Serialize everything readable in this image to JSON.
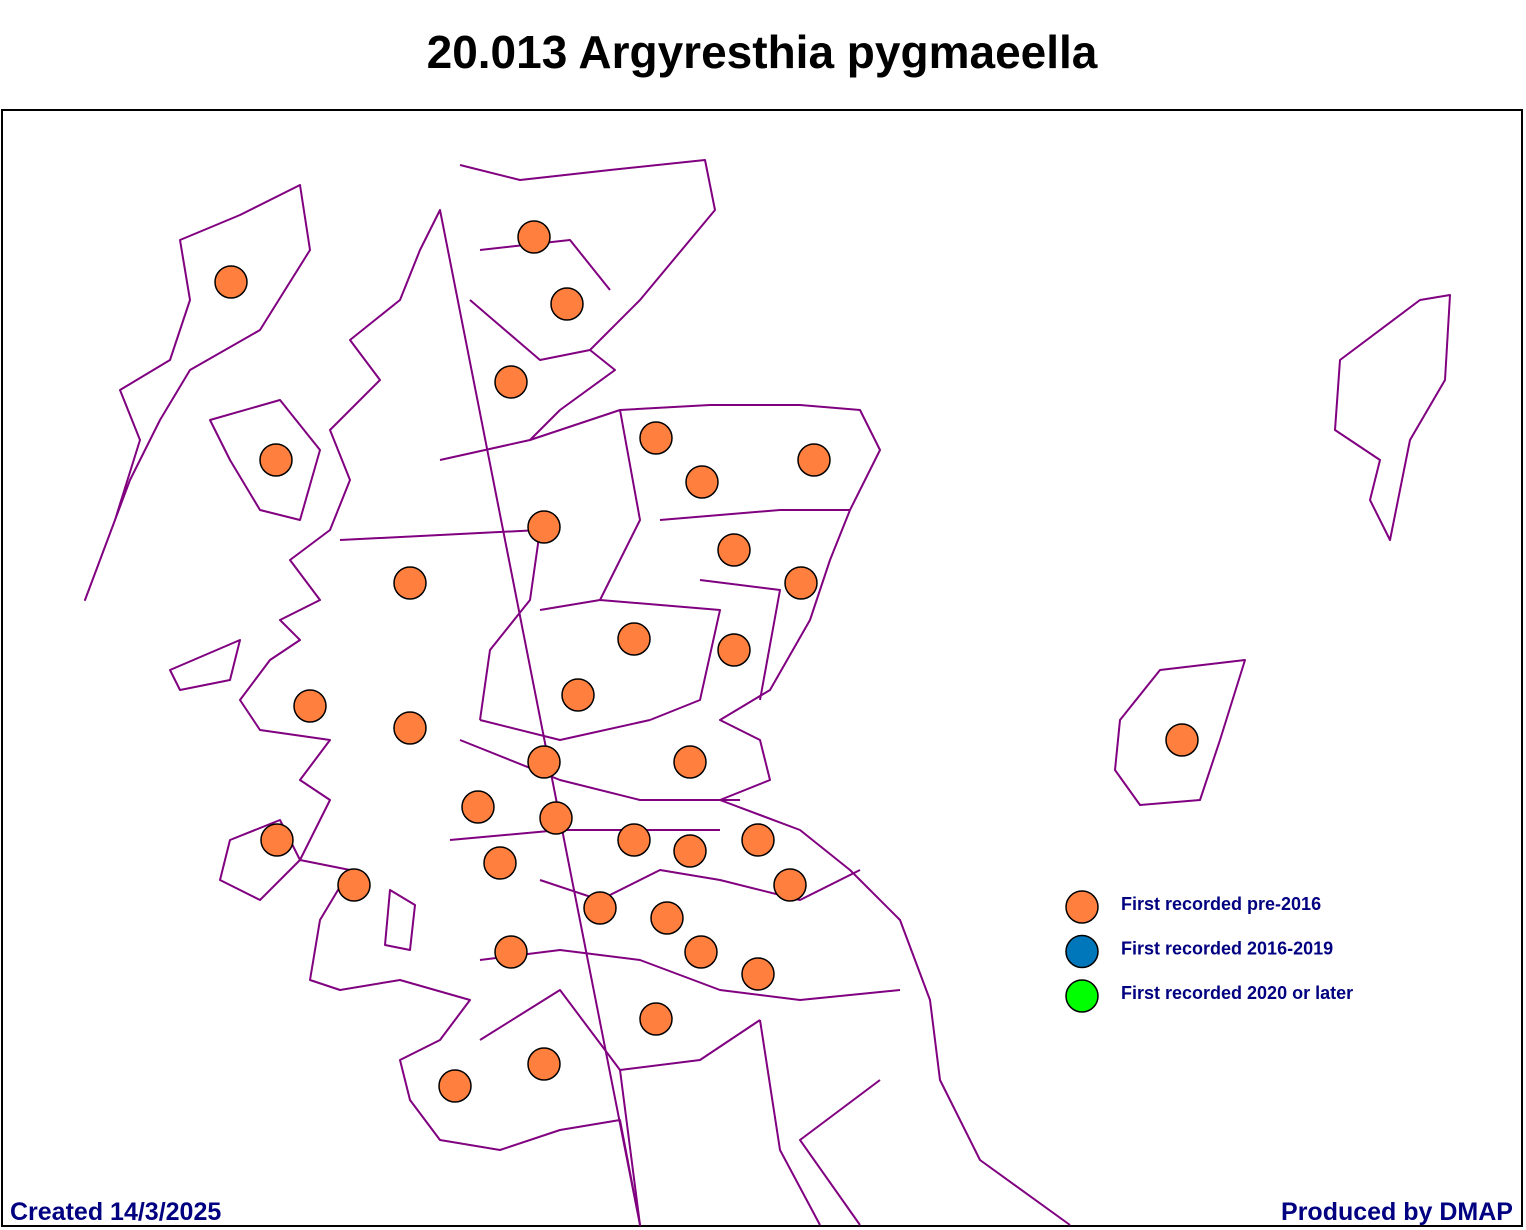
{
  "title": "20.013 Argyresthia pygmaeella",
  "legend": [
    {
      "label": "First recorded pre-2016",
      "color": "#ff7f3f"
    },
    {
      "label": "First recorded 2016-2019",
      "color": "#0077bb"
    },
    {
      "label": "First recorded 2020 or later",
      "color": "#00ff00"
    }
  ],
  "footer": {
    "created": "Created 14/3/2025",
    "producer": "Produced by DMAP"
  }
}
